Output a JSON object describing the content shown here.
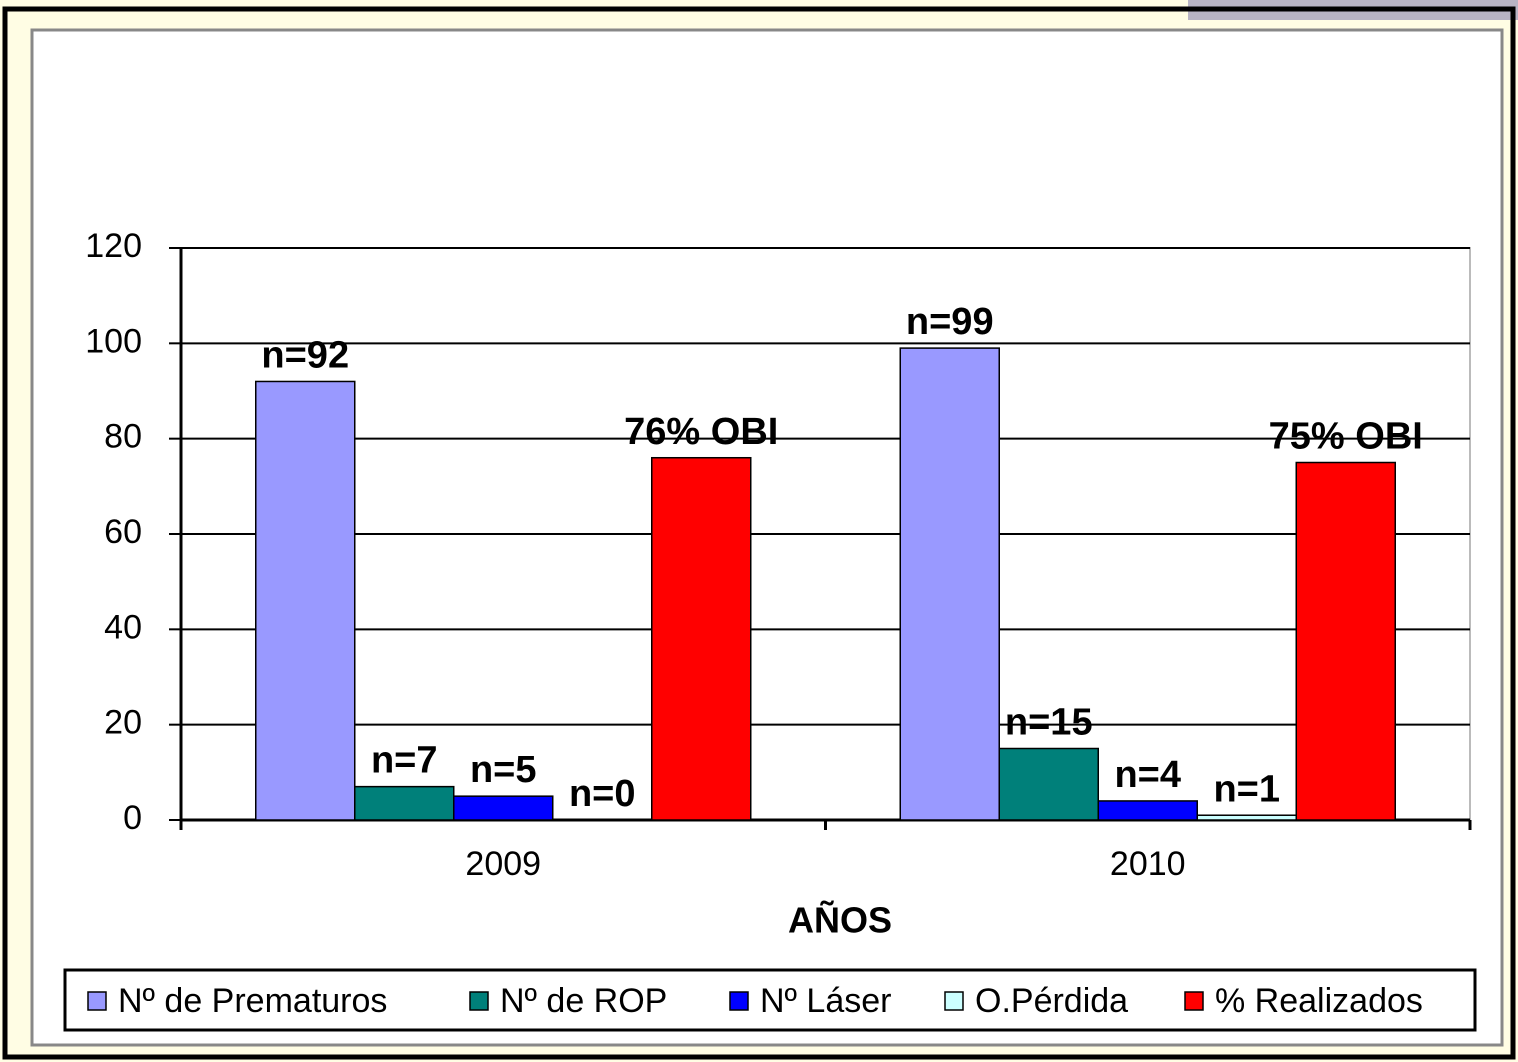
{
  "chart_data": {
    "type": "bar",
    "x_label": "AÑOS",
    "categories": [
      "2009",
      "2010"
    ],
    "series": [
      {
        "name": "Nº de Prematuros",
        "color": "#9999ff",
        "values": [
          92,
          99
        ],
        "value_labels": [
          "n=92",
          "n=99"
        ]
      },
      {
        "name": "Nº de ROP",
        "color": "#00807a",
        "values": [
          7,
          15
        ],
        "value_labels": [
          "n=7",
          "n=15"
        ]
      },
      {
        "name": "Nº Láser",
        "color": "#0000ff",
        "values": [
          5,
          4
        ],
        "value_labels": [
          "n=5",
          "n=4"
        ]
      },
      {
        "name": "O.Pérdida",
        "color": "#ccffff",
        "values": [
          0,
          1
        ],
        "value_labels": [
          "n=0",
          "n=1"
        ]
      },
      {
        "name": "% Realizados",
        "color": "#ff0000",
        "values": [
          76,
          75
        ],
        "value_labels": [
          "76% OBI",
          "75% OBI"
        ]
      }
    ],
    "ylim": [
      0,
      120
    ],
    "yticks": [
      0,
      20,
      40,
      60,
      80,
      100,
      120
    ],
    "grid": true,
    "legend": "bottom"
  }
}
